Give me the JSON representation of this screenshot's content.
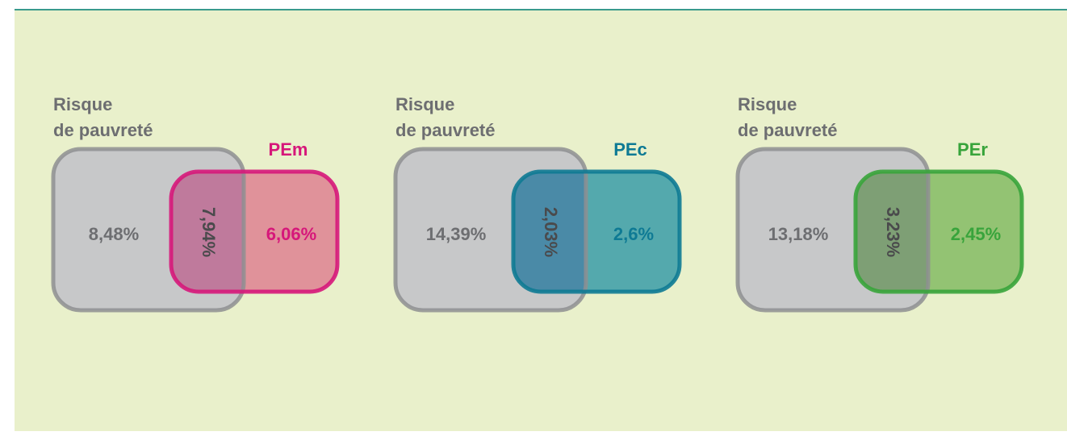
{
  "panels": [
    {
      "label_lines": [
        "Risque",
        "de pauvreté"
      ],
      "set": "PEm",
      "risk_only": "8,48%",
      "overlap": "7,94%",
      "set_only": "6,06%"
    },
    {
      "label_lines": [
        "Risque",
        "de pauvreté"
      ],
      "set": "PEc",
      "risk_only": "14,39%",
      "overlap": "2,03%",
      "set_only": "2,6%"
    },
    {
      "label_lines": [
        "Risque",
        "de pauvreté"
      ],
      "set": "PEr",
      "risk_only": "13,18%",
      "overlap": "3,23%",
      "set_only": "2,45%"
    }
  ]
}
